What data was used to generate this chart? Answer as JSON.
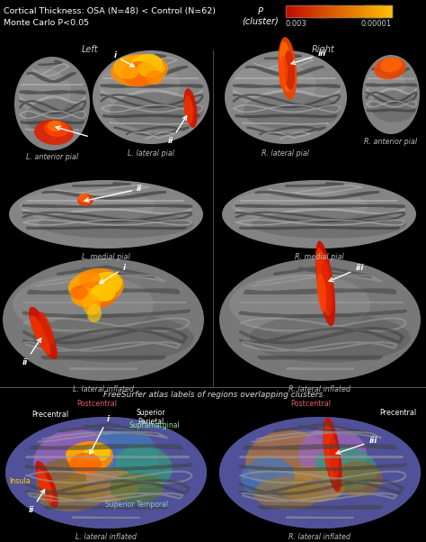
{
  "title_line1": "Cortical Thickness: OSA (N=48) < Control (N=62)",
  "title_line2": "Monte Carlo P<0.05",
  "colorbar_label_p": "P",
  "colorbar_label_cluster": "(cluster)",
  "colorbar_tick_left": "0.003",
  "colorbar_tick_right": "0.00001",
  "left_label": "Left",
  "right_label": "Right",
  "bottom_section_label": "FreeSurfer atlas labels of regions overlapping clusters",
  "panel_captions": {
    "L_ant": "L. anterior pial",
    "L_lat_pial": "L. lateral pial",
    "L_med": "L. medial pial",
    "R_lat_pial": "R. lateral pial",
    "R_ant": "R. anterior pial",
    "R_med": "R. medial pial",
    "L_inf": "L. lateral inflated",
    "R_inf": "R. lateral inflated"
  },
  "bg_color": "#000000",
  "brain_gray_light": "#9a9a9a",
  "brain_gray_mid": "#707070",
  "brain_gray_dark": "#484848",
  "sulci_dark": "#333333",
  "sulci_light": "#aaaaaa",
  "text_color": "#cccccc",
  "title_color": "#ffffff",
  "label_color": "#bbbbbb",
  "act_colors": {
    "red_dark": "#cc1100",
    "red_mid": "#ee3300",
    "orange": "#ff6600",
    "orange_light": "#ff8c00",
    "yellow_orange": "#ffaa00",
    "yellow": "#ffcc00"
  },
  "atlas_regions_left": [
    [
      118,
      525,
      112,
      62,
      "#5050a0",
      0.9,
      0
    ],
    [
      82,
      512,
      45,
      35,
      "#9966bb",
      0.8,
      -8
    ],
    [
      138,
      505,
      38,
      30,
      "#4477bb",
      0.75,
      5
    ],
    [
      160,
      518,
      32,
      24,
      "#33997a",
      0.75,
      12
    ],
    [
      115,
      538,
      40,
      20,
      "#bb8833",
      0.72,
      3
    ],
    [
      68,
      534,
      28,
      24,
      "#886622",
      0.75,
      -5
    ],
    [
      78,
      550,
      38,
      18,
      "#997733",
      0.68,
      0
    ],
    [
      152,
      542,
      30,
      17,
      "#557733",
      0.68,
      0
    ]
  ],
  "atlas_regions_right": [
    [
      356,
      525,
      112,
      62,
      "#5050a0",
      0.9,
      0
    ],
    [
      318,
      510,
      45,
      32,
      "#bb7733",
      0.72,
      -8
    ],
    [
      370,
      504,
      38,
      30,
      "#9966bb",
      0.78,
      3
    ],
    [
      385,
      520,
      35,
      24,
      "#33997a",
      0.72,
      10
    ],
    [
      345,
      538,
      40,
      20,
      "#bb8833",
      0.68,
      3
    ],
    [
      298,
      530,
      30,
      22,
      "#4477bb",
      0.72,
      -5
    ],
    [
      320,
      548,
      38,
      18,
      "#997733",
      0.65,
      0
    ],
    [
      398,
      532,
      28,
      20,
      "#886622",
      0.65,
      0
    ]
  ],
  "figsize": [
    4.74,
    6.02
  ],
  "dpi": 100
}
